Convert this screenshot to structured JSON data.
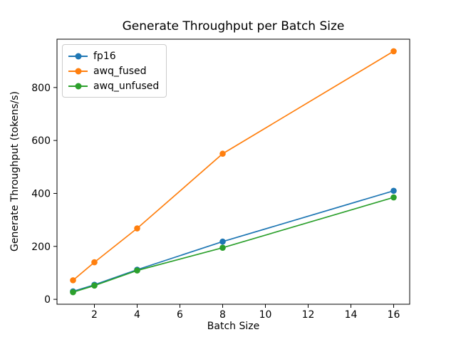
{
  "chart_data": {
    "type": "line",
    "title": "Generate Throughput per Batch Size",
    "xlabel": "Batch Size",
    "ylabel": "Generate Throughput (tokens/s)",
    "x": [
      1,
      2,
      4,
      8,
      16
    ],
    "series": [
      {
        "name": "fp16",
        "color": "#1f77b4",
        "values": [
          30,
          55,
          112,
          218,
          410
        ]
      },
      {
        "name": "awq_fused",
        "color": "#ff7f0e",
        "values": [
          72,
          140,
          268,
          550,
          937
        ]
      },
      {
        "name": "awq_unfused",
        "color": "#2ca02c",
        "values": [
          27,
          52,
          109,
          195,
          385
        ]
      }
    ],
    "xticks": [
      2,
      4,
      6,
      8,
      10,
      12,
      14,
      16
    ],
    "yticks": [
      0,
      200,
      400,
      600,
      800
    ],
    "xlim": [
      0.25,
      16.75
    ],
    "ylim": [
      -18.5,
      982.5
    ],
    "legend_position": "upper left",
    "grid": false,
    "marker": "circle",
    "axis_color": "#000000"
  }
}
